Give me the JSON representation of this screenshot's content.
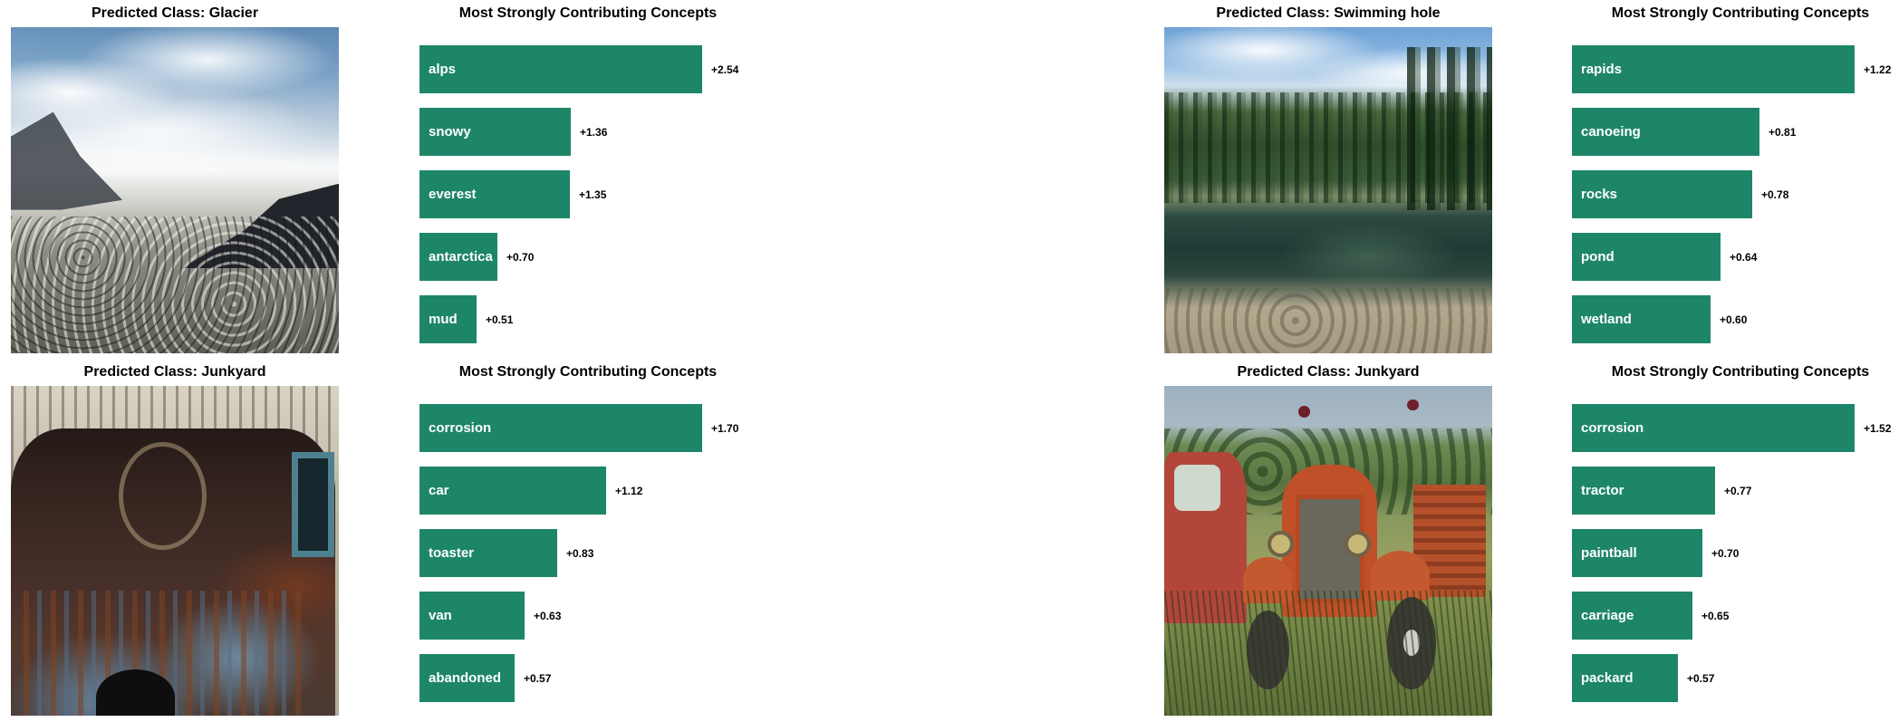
{
  "figure": {
    "background": "#ffffff"
  },
  "colors": {
    "bar": "#1e8668",
    "bar_label_text": "#ffffff",
    "value_text": "#000000",
    "title_text": "#000000"
  },
  "panels": [
    {
      "title": "Predicted Class: Glacier",
      "chart_title": "Most Strongly Contributing Concepts",
      "photo": "glacier-photo",
      "bars": [
        {
          "label": "alps",
          "value": 2.54,
          "value_label": "+2.54"
        },
        {
          "label": "snowy",
          "value": 1.36,
          "value_label": "+1.36"
        },
        {
          "label": "everest",
          "value": 1.35,
          "value_label": "+1.35"
        },
        {
          "label": "antarctica",
          "value": 0.7,
          "value_label": "+0.70"
        },
        {
          "label": "mud",
          "value": 0.51,
          "value_label": "+0.51"
        }
      ]
    },
    {
      "title": "Predicted Class: Swimming hole",
      "chart_title": "Most Strongly Contributing Concepts",
      "photo": "swimming-hole-photo",
      "bars": [
        {
          "label": "rapids",
          "value": 1.22,
          "value_label": "+1.22"
        },
        {
          "label": "canoeing",
          "value": 0.81,
          "value_label": "+0.81"
        },
        {
          "label": "rocks",
          "value": 0.78,
          "value_label": "+0.78"
        },
        {
          "label": "pond",
          "value": 0.64,
          "value_label": "+0.64"
        },
        {
          "label": "wetland",
          "value": 0.6,
          "value_label": "+0.60"
        }
      ]
    },
    {
      "title": "Predicted Class: Junkyard",
      "chart_title": "Most Strongly Contributing Concepts",
      "photo": "junkyard-van-photo",
      "bars": [
        {
          "label": "corrosion",
          "value": 1.7,
          "value_label": "+1.70"
        },
        {
          "label": "car",
          "value": 1.12,
          "value_label": "+1.12"
        },
        {
          "label": "toaster",
          "value": 0.83,
          "value_label": "+0.83"
        },
        {
          "label": "van",
          "value": 0.63,
          "value_label": "+0.63"
        },
        {
          "label": "abandoned",
          "value": 0.57,
          "value_label": "+0.57"
        }
      ]
    },
    {
      "title": "Predicted Class: Junkyard",
      "chart_title": "Most Strongly Contributing Concepts",
      "photo": "junkyard-truck-photo",
      "bars": [
        {
          "label": "corrosion",
          "value": 1.52,
          "value_label": "+1.52"
        },
        {
          "label": "tractor",
          "value": 0.77,
          "value_label": "+0.77"
        },
        {
          "label": "paintball",
          "value": 0.7,
          "value_label": "+0.70"
        },
        {
          "label": "carriage",
          "value": 0.65,
          "value_label": "+0.65"
        },
        {
          "label": "packard",
          "value": 0.57,
          "value_label": "+0.57"
        }
      ]
    }
  ],
  "chart_data": [
    {
      "type": "bar",
      "orientation": "horizontal",
      "title": "Most Strongly Contributing Concepts",
      "panel_title": "Predicted Class: Glacier",
      "categories": [
        "alps",
        "snowy",
        "everest",
        "antarctica",
        "mud"
      ],
      "values": [
        2.54,
        1.36,
        1.35,
        0.7,
        0.51
      ],
      "value_labels": [
        "+2.54",
        "+1.36",
        "+1.35",
        "+0.70",
        "+0.51"
      ],
      "bar_color": "#1e8668",
      "axes_visible": false,
      "grid": false
    },
    {
      "type": "bar",
      "orientation": "horizontal",
      "title": "Most Strongly Contributing Concepts",
      "panel_title": "Predicted Class: Swimming hole",
      "categories": [
        "rapids",
        "canoeing",
        "rocks",
        "pond",
        "wetland"
      ],
      "values": [
        1.22,
        0.81,
        0.78,
        0.64,
        0.6
      ],
      "value_labels": [
        "+1.22",
        "+0.81",
        "+0.78",
        "+0.64",
        "+0.60"
      ],
      "bar_color": "#1e8668",
      "axes_visible": false,
      "grid": false
    },
    {
      "type": "bar",
      "orientation": "horizontal",
      "title": "Most Strongly Contributing Concepts",
      "panel_title": "Predicted Class: Junkyard",
      "categories": [
        "corrosion",
        "car",
        "toaster",
        "van",
        "abandoned"
      ],
      "values": [
        1.7,
        1.12,
        0.83,
        0.63,
        0.57
      ],
      "value_labels": [
        "+1.70",
        "+1.12",
        "+0.83",
        "+0.63",
        "+0.57"
      ],
      "bar_color": "#1e8668",
      "axes_visible": false,
      "grid": false
    },
    {
      "type": "bar",
      "orientation": "horizontal",
      "title": "Most Strongly Contributing Concepts",
      "panel_title": "Predicted Class: Junkyard",
      "categories": [
        "corrosion",
        "tractor",
        "paintball",
        "carriage",
        "packard"
      ],
      "values": [
        1.52,
        0.77,
        0.7,
        0.65,
        0.57
      ],
      "value_labels": [
        "+1.52",
        "+0.77",
        "+0.70",
        "+0.65",
        "+0.57"
      ],
      "bar_color": "#1e8668",
      "axes_visible": false,
      "grid": false
    }
  ]
}
